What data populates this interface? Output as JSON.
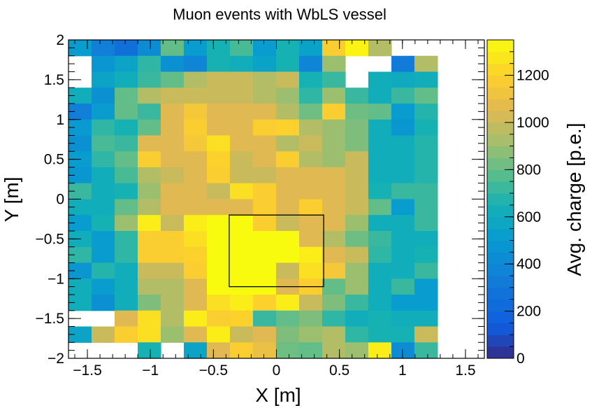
{
  "chart_data": {
    "type": "heatmap",
    "title": "Muon events with WbLS vessel",
    "xlabel": "X [m]",
    "ylabel": "Y [m]",
    "colorbar_label": "Avg. charge [p.e.]",
    "xlim": [
      -1.65,
      1.65
    ],
    "ylim": [
      -2,
      2
    ],
    "zlim": [
      0,
      1350
    ],
    "x_ticks": [
      -1.5,
      -1,
      -0.5,
      0,
      0.5,
      1,
      1.5
    ],
    "x_tick_labels": [
      "−1.5",
      "−1",
      "−0.5",
      "0",
      "0.5",
      "1",
      "1.5"
    ],
    "y_ticks": [
      -2,
      -1.5,
      -1,
      -0.5,
      0,
      0.5,
      1,
      1.5,
      2
    ],
    "y_tick_labels": [
      "−2",
      "−1.5",
      "−1",
      "−0.5",
      "0",
      "0.5",
      "1",
      "1.5",
      "2"
    ],
    "z_ticks": [
      0,
      200,
      400,
      600,
      800,
      1000,
      1200
    ],
    "z_tick_labels": [
      "0",
      "200",
      "400",
      "600",
      "800",
      "1000",
      "1200"
    ],
    "n_x_bins": 18,
    "n_y_bins": 20,
    "bin_size_m": [
      0.183,
      0.2
    ],
    "z_rows_top_to_bottom": [
      [
        520,
        350,
        250,
        420,
        800,
        520,
        650,
        750,
        520,
        650,
        550,
        1180,
        1320,
        950,
        null,
        null,
        null,
        null
      ],
      [
        null,
        480,
        560,
        700,
        450,
        380,
        650,
        620,
        550,
        650,
        380,
        900,
        null,
        null,
        320,
        950,
        null,
        null
      ],
      [
        null,
        560,
        620,
        720,
        800,
        950,
        1000,
        1000,
        950,
        1000,
        650,
        720,
        null,
        620,
        600,
        620,
        null,
        null
      ],
      [
        620,
        450,
        800,
        950,
        1000,
        1000,
        1000,
        1000,
        950,
        900,
        700,
        900,
        720,
        620,
        720,
        800,
        null,
        null
      ],
      [
        350,
        520,
        800,
        720,
        1050,
        1150,
        1050,
        1050,
        1050,
        950,
        820,
        1180,
        820,
        800,
        520,
        680,
        null,
        null
      ],
      [
        500,
        700,
        650,
        800,
        1050,
        1180,
        1050,
        1050,
        1180,
        1200,
        950,
        900,
        850,
        620,
        480,
        650,
        null,
        null
      ],
      [
        450,
        750,
        720,
        1050,
        1050,
        1150,
        1250,
        1050,
        1050,
        950,
        1000,
        900,
        850,
        620,
        620,
        680,
        null,
        null
      ],
      [
        520,
        700,
        800,
        1180,
        1050,
        1050,
        1200,
        1000,
        1050,
        1180,
        950,
        900,
        1000,
        620,
        620,
        680,
        null,
        null
      ],
      [
        480,
        620,
        750,
        950,
        1000,
        1050,
        1180,
        1000,
        1000,
        1050,
        1050,
        1050,
        1000,
        620,
        620,
        680,
        null,
        null
      ],
      [
        720,
        620,
        650,
        900,
        1050,
        1050,
        1000,
        1250,
        1180,
        1050,
        1050,
        1050,
        1000,
        650,
        720,
        720,
        null,
        null
      ],
      [
        620,
        620,
        800,
        950,
        1050,
        1050,
        1050,
        1050,
        1180,
        1050,
        1180,
        1050,
        1000,
        800,
        520,
        720,
        null,
        null
      ],
      [
        520,
        650,
        900,
        1300,
        1000,
        1300,
        1350,
        1350,
        1180,
        1000,
        1050,
        1050,
        900,
        620,
        620,
        720,
        null,
        null
      ],
      [
        620,
        520,
        700,
        1180,
        1180,
        1250,
        1350,
        1350,
        1350,
        1350,
        1050,
        950,
        820,
        720,
        620,
        620,
        null,
        null
      ],
      [
        700,
        520,
        700,
        1180,
        1180,
        1200,
        1350,
        1350,
        1350,
        1350,
        1300,
        1050,
        1000,
        700,
        620,
        650,
        null,
        null
      ],
      [
        480,
        680,
        620,
        1000,
        1000,
        1180,
        1350,
        1350,
        1350,
        1000,
        1250,
        1150,
        900,
        620,
        620,
        720,
        null,
        null
      ],
      [
        620,
        520,
        620,
        950,
        950,
        1050,
        1350,
        1350,
        1350,
        1050,
        1180,
        800,
        900,
        620,
        720,
        520,
        null,
        null
      ],
      [
        620,
        450,
        620,
        850,
        950,
        1050,
        1250,
        1300,
        1200,
        1300,
        1000,
        850,
        720,
        620,
        520,
        520,
        null,
        null
      ],
      [
        null,
        null,
        1050,
        1250,
        950,
        1300,
        1180,
        1200,
        720,
        800,
        850,
        700,
        620,
        650,
        620,
        620,
        null,
        null
      ],
      [
        560,
        1000,
        1180,
        1250,
        900,
        1050,
        1300,
        1000,
        1050,
        850,
        900,
        950,
        700,
        650,
        650,
        1000,
        null,
        null
      ],
      [
        null,
        null,
        null,
        650,
        null,
        560,
        1050,
        1180,
        1100,
        820,
        800,
        950,
        900,
        1300,
        420,
        720,
        null,
        null
      ]
    ],
    "annotation_box": {
      "x": [
        -0.375,
        0.375
      ],
      "y": [
        -1.1,
        -0.2
      ]
    }
  }
}
